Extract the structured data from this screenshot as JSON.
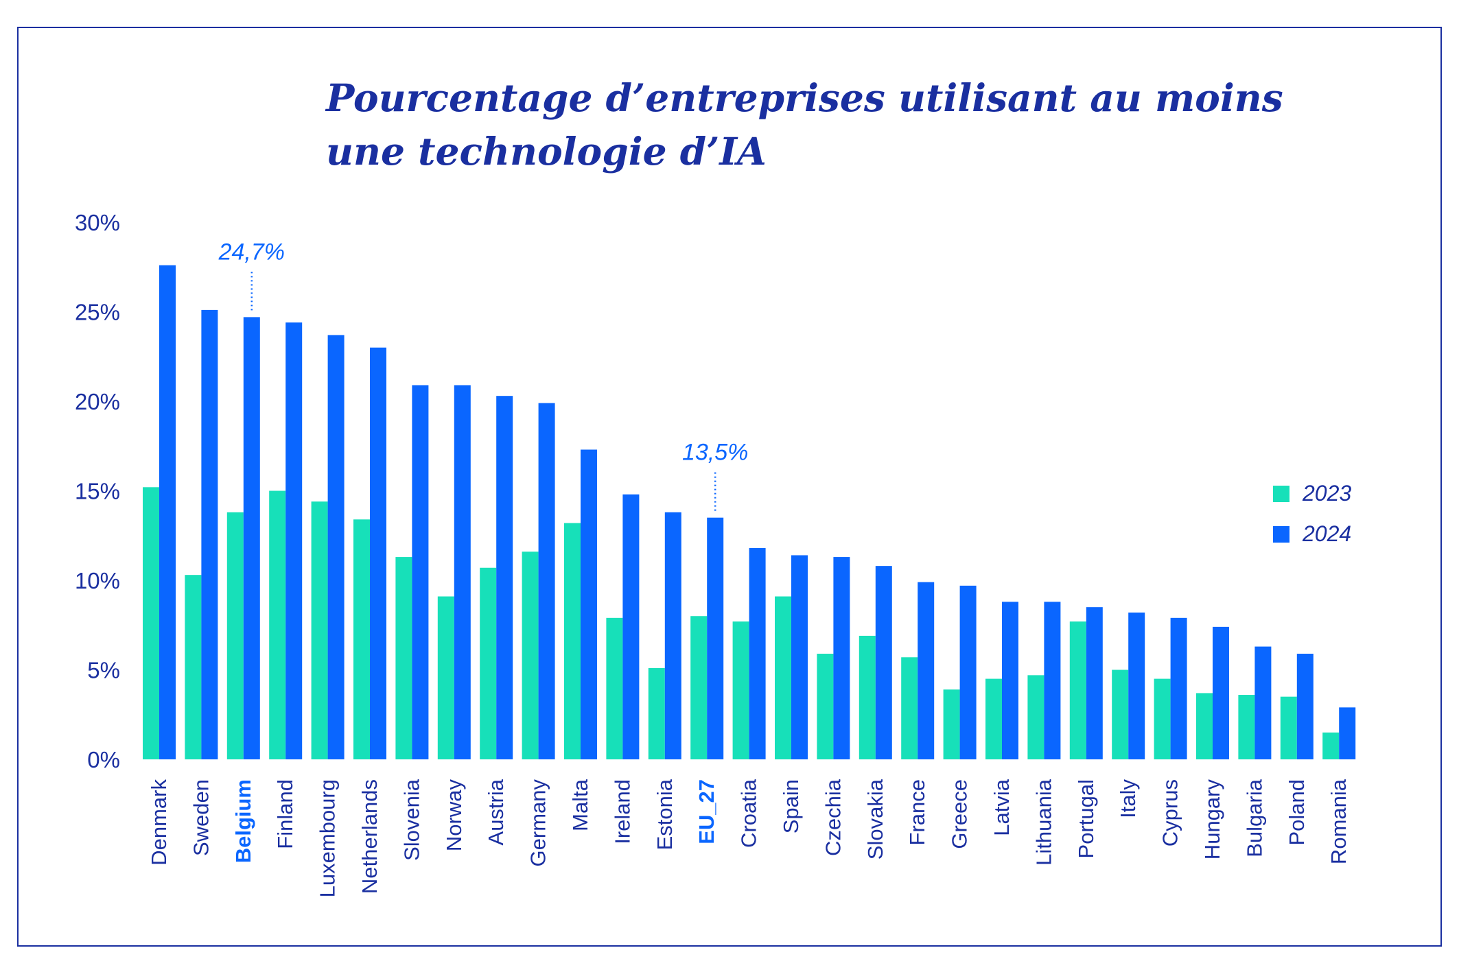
{
  "title_lines": [
    "Pourcentage d’entreprises utilisant au moins",
    "une technologie d’IA"
  ],
  "colors": {
    "frame": "#1a2fa0",
    "title": "#1a2fa0",
    "axis_text": "#1a2fa0",
    "highlight": "#0a66ff",
    "series_2023": "#17e0b9",
    "series_2024": "#0a66ff"
  },
  "chart_data": {
    "type": "bar",
    "title": "Pourcentage d’entreprises utilisant au moins une technologie d’IA",
    "xlabel": "",
    "ylabel": "",
    "ylim": [
      0,
      30
    ],
    "yticks": [
      0,
      5,
      10,
      15,
      20,
      25,
      30
    ],
    "ytick_labels": [
      "0%",
      "5%",
      "10%",
      "15%",
      "20%",
      "25%",
      "30%"
    ],
    "grid": false,
    "legend_position": "right",
    "categories": [
      "Denmark",
      "Sweden",
      "Belgium",
      "Finland",
      "Luxembourg",
      "Netherlands",
      "Slovenia",
      "Norway",
      "Austria",
      "Germany",
      "Malta",
      "Ireland",
      "Estonia",
      "EU_27",
      "Croatia",
      "Spain",
      "Czechia",
      "Slovakia",
      "France",
      "Greece",
      "Latvia",
      "Lithuania",
      "Portugal",
      "Italy",
      "Cyprus",
      "Hungary",
      "Bulgaria",
      "Poland",
      "Romania"
    ],
    "highlighted_categories": [
      "Belgium",
      "EU_27"
    ],
    "series": [
      {
        "name": "2023",
        "values": [
          15.2,
          10.3,
          13.8,
          15.0,
          14.4,
          13.4,
          11.3,
          9.1,
          10.7,
          11.6,
          13.2,
          7.9,
          5.1,
          8.0,
          7.7,
          9.1,
          5.9,
          6.9,
          5.7,
          3.9,
          4.5,
          4.7,
          7.7,
          5.0,
          4.5,
          3.7,
          3.6,
          3.5,
          1.5
        ]
      },
      {
        "name": "2024",
        "values": [
          27.6,
          25.1,
          24.7,
          24.4,
          23.7,
          23.0,
          20.9,
          20.9,
          20.3,
          19.9,
          17.3,
          14.8,
          13.8,
          13.5,
          11.8,
          11.4,
          11.3,
          10.8,
          9.9,
          9.7,
          8.8,
          8.8,
          8.5,
          8.2,
          7.9,
          7.4,
          6.3,
          5.9,
          2.9
        ]
      }
    ],
    "annotations": [
      {
        "category": "Belgium",
        "series": "2024",
        "text": "24,7%"
      },
      {
        "category": "EU_27",
        "series": "2024",
        "text": "13,5%"
      }
    ]
  }
}
